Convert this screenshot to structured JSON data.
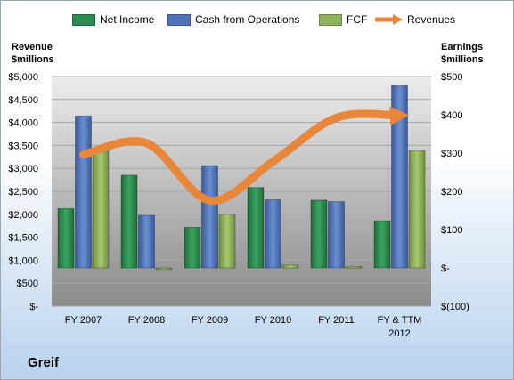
{
  "legend": {
    "net_income": "Net Income",
    "cfo": "Cash from Operations",
    "fcf": "FCF",
    "revenues": "Revenues"
  },
  "left_axis_title": [
    "Revenue",
    "$millions"
  ],
  "right_axis_title": [
    "Earnings",
    "$millions"
  ],
  "company": "Greif",
  "colors": {
    "net_income": "#2e8b4f",
    "cfo": "#4f72b8",
    "fcf": "#8fb35a",
    "revenues": "#e8863a",
    "plot_bg_top": "#e6e6e6",
    "plot_bg_bottom": "#8c8c8c"
  },
  "chart_data": {
    "type": "bar",
    "categories": [
      "FY 2007",
      "FY 2008",
      "FY 2009",
      "FY 2010",
      "FY 2011",
      "FY & TTM 2012"
    ],
    "series": [
      {
        "name": "Net Income",
        "axis": "right",
        "values": [
          155,
          242,
          106,
          210,
          177,
          123
        ]
      },
      {
        "name": "Cash from Operations",
        "axis": "right",
        "values": [
          397,
          137,
          267,
          178,
          173,
          476
        ]
      },
      {
        "name": "FCF",
        "axis": "right",
        "values": [
          305,
          -4,
          140,
          7,
          3,
          307
        ]
      },
      {
        "name": "Revenues",
        "axis": "left",
        "type": "line",
        "values": [
          3300,
          3550,
          2300,
          3150,
          4100,
          4150
        ]
      }
    ],
    "left_axis": {
      "label": "Revenue $millions",
      "range": [
        0,
        5000
      ],
      "ticks": [
        "$-",
        "$500",
        "$1,000",
        "$1,500",
        "$2,000",
        "$2,500",
        "$3,000",
        "$3,500",
        "$4,000",
        "$4,500",
        "$5,000"
      ]
    },
    "right_axis": {
      "label": "Earnings $millions",
      "range": [
        -100,
        500
      ],
      "ticks": [
        "$(100)",
        "$-",
        "$100",
        "$200",
        "$300",
        "$400",
        "$500"
      ]
    },
    "legend_position": "top",
    "grid": true
  }
}
